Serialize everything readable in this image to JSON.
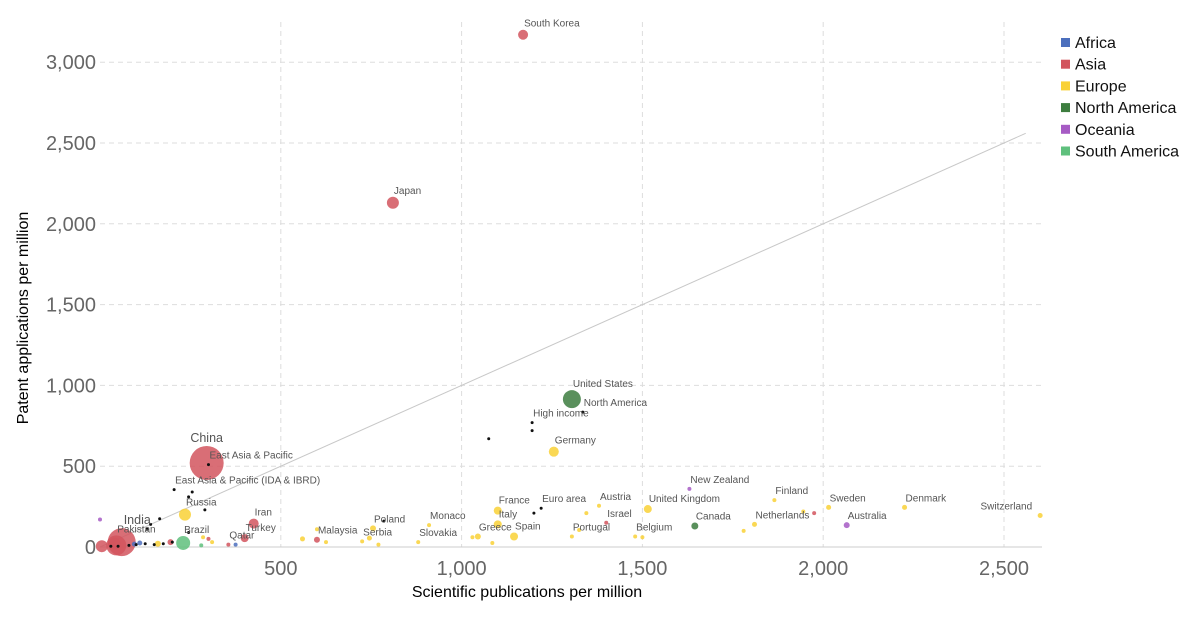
{
  "chart_data": {
    "type": "scatter",
    "title": "",
    "xlabel": "Scientific publications per million",
    "ylabel": "Patent applications per million",
    "xlim": [
      0,
      2600
    ],
    "ylim": [
      0,
      3200
    ],
    "x_ticks": [
      500,
      1000,
      1500,
      2000,
      2500
    ],
    "y_ticks": [
      0,
      500,
      1000,
      1500,
      2000,
      2500,
      3000
    ],
    "x_tick_labels": [
      "500",
      "1,000",
      "1,500",
      "2,000",
      "2,500"
    ],
    "y_tick_labels": [
      "0",
      "500",
      "1,000",
      "1,500",
      "2,000",
      "2,500",
      "3,000"
    ],
    "grid": true,
    "reference_line": {
      "from": [
        0,
        0
      ],
      "to": [
        2560,
        2560
      ]
    },
    "legend_position": "top-right",
    "legend": [
      {
        "name": "Africa",
        "color": "#4c6fbd"
      },
      {
        "name": "Asia",
        "color": "#d2555e"
      },
      {
        "name": "Europe",
        "color": "#f9d136"
      },
      {
        "name": "North America",
        "color": "#3d7d3f"
      },
      {
        "name": "Oceania",
        "color": "#a65bc4"
      },
      {
        "name": "South America",
        "color": "#5fc07d"
      }
    ],
    "colors": {
      "Africa": "#4c6fbd",
      "Asia": "#d2555e",
      "Europe": "#f9d136",
      "North America": "#3d7d3f",
      "Oceania": "#a65bc4",
      "South America": "#5fc07d",
      "aggregate": "#111111"
    },
    "points": [
      {
        "label": "South Korea",
        "x": 1170,
        "y": 3170,
        "group": "Asia",
        "size": 5
      },
      {
        "label": "Japan",
        "x": 810,
        "y": 2130,
        "group": "Asia",
        "size": 6
      },
      {
        "label": "China",
        "x": 295,
        "y": 520,
        "group": "Asia",
        "size": 17,
        "big": true
      },
      {
        "label": "United States",
        "x": 1305,
        "y": 915,
        "group": "North America",
        "size": 9
      },
      {
        "label": "Germany",
        "x": 1255,
        "y": 590,
        "group": "Europe",
        "size": 5
      },
      {
        "label": "Russia",
        "x": 235,
        "y": 200,
        "group": "Europe",
        "size": 6
      },
      {
        "label": "India",
        "x": 60,
        "y": 30,
        "group": "Asia",
        "size": 14,
        "big": true
      },
      {
        "label": "Pakistan",
        "x": 45,
        "y": 10,
        "group": "Asia",
        "size": 10
      },
      {
        "label": "Brazil",
        "x": 230,
        "y": 25,
        "group": "South America",
        "size": 7
      },
      {
        "label": "Iran",
        "x": 425,
        "y": 145,
        "group": "Asia",
        "size": 5
      },
      {
        "label": "Turkey",
        "x": 400,
        "y": 55,
        "group": "Asia",
        "size": 4
      },
      {
        "label": "Qatar",
        "x": 355,
        "y": 15,
        "group": "Asia",
        "size": 2
      },
      {
        "label": "Malaysia",
        "x": 600,
        "y": 45,
        "group": "Asia",
        "size": 3
      },
      {
        "label": "Poland",
        "x": 755,
        "y": 115,
        "group": "Europe",
        "size": 3
      },
      {
        "label": "Serbia",
        "x": 725,
        "y": 35,
        "group": "Europe",
        "size": 2
      },
      {
        "label": "Monaco",
        "x": 910,
        "y": 135,
        "group": "Europe",
        "size": 2
      },
      {
        "label": "Slovakia",
        "x": 880,
        "y": 30,
        "group": "Europe",
        "size": 2
      },
      {
        "label": "Greece",
        "x": 1045,
        "y": 65,
        "group": "Europe",
        "size": 3
      },
      {
        "label": "Italy",
        "x": 1100,
        "y": 140,
        "group": "Europe",
        "size": 4
      },
      {
        "label": "France",
        "x": 1100,
        "y": 225,
        "group": "Europe",
        "size": 4
      },
      {
        "label": "Spain",
        "x": 1145,
        "y": 65,
        "group": "Europe",
        "size": 4
      },
      {
        "label": "Portugal",
        "x": 1305,
        "y": 65,
        "group": "Europe",
        "size": 2
      },
      {
        "label": "Austria",
        "x": 1380,
        "y": 255,
        "group": "Europe",
        "size": 2
      },
      {
        "label": "Israel",
        "x": 1400,
        "y": 150,
        "group": "Asia",
        "size": 2
      },
      {
        "label": "United Kingdom",
        "x": 1515,
        "y": 235,
        "group": "Europe",
        "size": 4
      },
      {
        "label": "Belgium",
        "x": 1480,
        "y": 65,
        "group": "Europe",
        "size": 2
      },
      {
        "label": "Canada",
        "x": 1645,
        "y": 130,
        "group": "North America",
        "size": 3.5
      },
      {
        "label": "New Zealand",
        "x": 1630,
        "y": 360,
        "group": "Oceania",
        "size": 2
      },
      {
        "label": "Finland",
        "x": 1865,
        "y": 290,
        "group": "Europe",
        "size": 2
      },
      {
        "label": "Netherlands",
        "x": 1810,
        "y": 140,
        "group": "Europe",
        "size": 2.5
      },
      {
        "label": "Sweden",
        "x": 2015,
        "y": 245,
        "group": "Europe",
        "size": 2.5
      },
      {
        "label": "Australia",
        "x": 2065,
        "y": 135,
        "group": "Oceania",
        "size": 3
      },
      {
        "label": "Denmark",
        "x": 2225,
        "y": 245,
        "group": "Europe",
        "size": 2.5
      },
      {
        "label": "Switzerland",
        "x": 2600,
        "y": 195,
        "group": "Europe",
        "size": 2.5
      },
      {
        "label": "North America",
        "x": 1335,
        "y": 835,
        "group": "aggregate",
        "size": 1.5
      },
      {
        "label": "High income",
        "x": 1195,
        "y": 770,
        "group": "aggregate",
        "size": 1.5
      },
      {
        "label": "Euro area",
        "x": 1220,
        "y": 240,
        "group": "aggregate",
        "size": 1.5
      },
      {
        "label": "East Asia & Pacific",
        "x": 300,
        "y": 510,
        "group": "aggregate",
        "size": 1.5
      },
      {
        "label": "East Asia & Pacific (IDA & IBRD)",
        "x": 205,
        "y": 355,
        "group": "aggregate",
        "size": 1.5
      },
      {
        "label": "",
        "x": 1075,
        "y": 670,
        "group": "aggregate",
        "size": 1.5
      },
      {
        "label": "",
        "x": 1195,
        "y": 720,
        "group": "aggregate",
        "size": 1.5
      },
      {
        "label": "",
        "x": 1200,
        "y": 210,
        "group": "aggregate",
        "size": 1.5
      },
      {
        "label": "",
        "x": 785,
        "y": 160,
        "group": "aggregate",
        "size": 1.5
      },
      {
        "label": "",
        "x": 255,
        "y": 340,
        "group": "aggregate",
        "size": 1.5
      },
      {
        "label": "",
        "x": 245,
        "y": 310,
        "group": "aggregate",
        "size": 1.5
      },
      {
        "label": "",
        "x": 290,
        "y": 230,
        "group": "aggregate",
        "size": 1.5
      },
      {
        "label": "",
        "x": 140,
        "y": 140,
        "group": "aggregate",
        "size": 1.5
      },
      {
        "label": "",
        "x": 130,
        "y": 110,
        "group": "aggregate",
        "size": 1.5
      },
      {
        "label": "",
        "x": 165,
        "y": 175,
        "group": "aggregate",
        "size": 1.5
      },
      {
        "label": "",
        "x": 200,
        "y": 30,
        "group": "aggregate",
        "size": 1.5
      },
      {
        "label": "",
        "x": 175,
        "y": 20,
        "group": "aggregate",
        "size": 1.5
      },
      {
        "label": "",
        "x": 150,
        "y": 15,
        "group": "aggregate",
        "size": 1.5
      },
      {
        "label": "",
        "x": 125,
        "y": 20,
        "group": "aggregate",
        "size": 1.5
      },
      {
        "label": "",
        "x": 100,
        "y": 15,
        "group": "aggregate",
        "size": 1.5
      },
      {
        "label": "",
        "x": 80,
        "y": 10,
        "group": "aggregate",
        "size": 1.5
      },
      {
        "label": "",
        "x": 50,
        "y": 5,
        "group": "aggregate",
        "size": 1.5
      },
      {
        "label": "",
        "x": 30,
        "y": 5,
        "group": "aggregate",
        "size": 1.5
      },
      {
        "label": "",
        "x": 245,
        "y": 90,
        "group": "aggregate",
        "size": 1.5
      },
      {
        "label": "",
        "x": 195,
        "y": 30,
        "group": "Asia",
        "size": 3
      },
      {
        "label": "",
        "x": 160,
        "y": 20,
        "group": "Europe",
        "size": 3
      },
      {
        "label": "",
        "x": 110,
        "y": 25,
        "group": "Africa",
        "size": 2.5
      },
      {
        "label": "",
        "x": 95,
        "y": 18,
        "group": "Africa",
        "size": 2.5
      },
      {
        "label": "",
        "x": 375,
        "y": 15,
        "group": "Africa",
        "size": 2
      },
      {
        "label": "",
        "x": 0,
        "y": 170,
        "group": "Oceania",
        "size": 2
      },
      {
        "label": "",
        "x": 5,
        "y": 5,
        "group": "Asia",
        "size": 6
      },
      {
        "label": "",
        "x": 40,
        "y": 20,
        "group": "Asia",
        "size": 6
      },
      {
        "label": "",
        "x": 285,
        "y": 60,
        "group": "Europe",
        "size": 2
      },
      {
        "label": "",
        "x": 300,
        "y": 50,
        "group": "Asia",
        "size": 2
      },
      {
        "label": "",
        "x": 310,
        "y": 30,
        "group": "Europe",
        "size": 2
      },
      {
        "label": "",
        "x": 280,
        "y": 10,
        "group": "South America",
        "size": 2
      },
      {
        "label": "",
        "x": 560,
        "y": 50,
        "group": "Europe",
        "size": 2.5
      },
      {
        "label": "",
        "x": 600,
        "y": 110,
        "group": "Europe",
        "size": 2
      },
      {
        "label": "",
        "x": 625,
        "y": 30,
        "group": "Europe",
        "size": 2
      },
      {
        "label": "",
        "x": 745,
        "y": 55,
        "group": "Europe",
        "size": 2.5
      },
      {
        "label": "",
        "x": 770,
        "y": 15,
        "group": "Europe",
        "size": 2
      },
      {
        "label": "",
        "x": 1030,
        "y": 60,
        "group": "Europe",
        "size": 2
      },
      {
        "label": "",
        "x": 1085,
        "y": 25,
        "group": "Europe",
        "size": 2
      },
      {
        "label": "",
        "x": 1345,
        "y": 210,
        "group": "Europe",
        "size": 2
      },
      {
        "label": "",
        "x": 1325,
        "y": 105,
        "group": "Europe",
        "size": 2
      },
      {
        "label": "",
        "x": 1500,
        "y": 60,
        "group": "Europe",
        "size": 2
      },
      {
        "label": "",
        "x": 1780,
        "y": 100,
        "group": "Europe",
        "size": 2
      },
      {
        "label": "",
        "x": 1945,
        "y": 220,
        "group": "Europe",
        "size": 2
      },
      {
        "label": "",
        "x": 1975,
        "y": 210,
        "group": "Asia",
        "size": 2
      }
    ]
  }
}
